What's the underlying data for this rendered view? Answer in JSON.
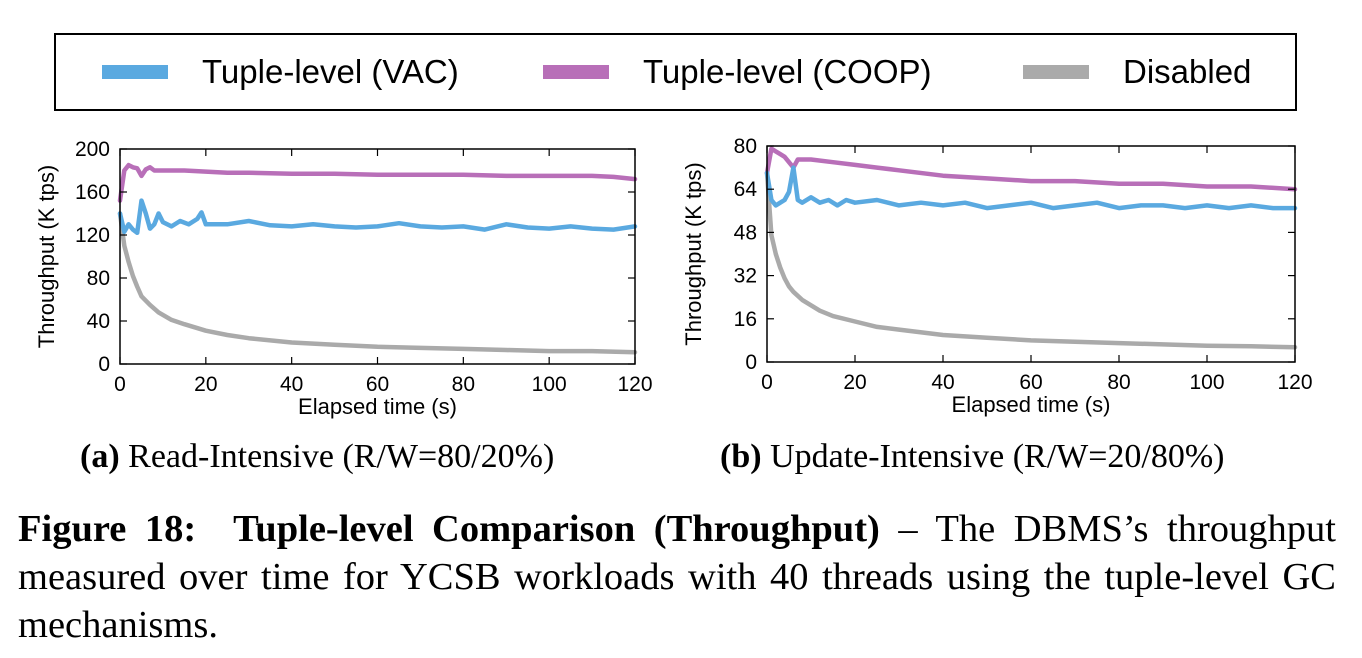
{
  "legend": [
    {
      "label": "Tuple-level (VAC)",
      "color": "#5aa9e0"
    },
    {
      "label": "Tuple-level (COOP)",
      "color": "#b86fb8"
    },
    {
      "label": "Disabled",
      "color": "#aaaaaa"
    }
  ],
  "captions": {
    "a_label": "(a)",
    "a_text": "Read-Intensive (R/W=80/20%)",
    "b_label": "(b)",
    "b_text": "Update-Intensive (R/W=20/80%)"
  },
  "figure_caption": {
    "label": "Figure 18:",
    "title": "Tuple-level Comparison (Throughput)",
    "body": "– The DBMS’s throughput measured over time for YCSB workloads with 40 threads using the tuple-level GC mechanisms."
  },
  "chart_data": [
    {
      "type": "line",
      "title": "",
      "xlabel": "Elapsed time (s)",
      "ylabel": "Throughput (K tps)",
      "xlim": [
        0,
        120
      ],
      "ylim": [
        0,
        200
      ],
      "xticks": [
        0,
        20,
        40,
        60,
        80,
        100,
        120
      ],
      "yticks": [
        0,
        40,
        80,
        120,
        160,
        200
      ],
      "grid": false,
      "series": [
        {
          "name": "Tuple-level (VAC)",
          "color": "#5aa9e0",
          "x": [
            0,
            1,
            2,
            3,
            4,
            5,
            6,
            7,
            8,
            9,
            10,
            12,
            14,
            16,
            18,
            19,
            20,
            25,
            30,
            35,
            40,
            45,
            50,
            55,
            60,
            65,
            70,
            75,
            80,
            85,
            90,
            95,
            100,
            105,
            110,
            115,
            120
          ],
          "y": [
            140,
            123,
            130,
            125,
            122,
            152,
            140,
            126,
            130,
            140,
            132,
            128,
            133,
            130,
            135,
            141,
            130,
            130,
            133,
            129,
            128,
            130,
            128,
            127,
            128,
            131,
            128,
            127,
            128,
            125,
            130,
            127,
            126,
            128,
            126,
            125,
            128
          ]
        },
        {
          "name": "Tuple-level (COOP)",
          "color": "#b86fb8",
          "x": [
            0,
            1,
            2,
            3,
            4,
            5,
            6,
            7,
            8,
            10,
            15,
            20,
            25,
            30,
            40,
            50,
            60,
            70,
            80,
            90,
            100,
            110,
            115,
            120
          ],
          "y": [
            152,
            180,
            185,
            183,
            182,
            175,
            181,
            183,
            180,
            180,
            180,
            179,
            178,
            178,
            177,
            177,
            176,
            176,
            176,
            175,
            175,
            175,
            174,
            172
          ]
        },
        {
          "name": "Disabled",
          "color": "#aaaaaa",
          "x": [
            0,
            1,
            2,
            3,
            4,
            5,
            7,
            9,
            12,
            15,
            20,
            25,
            30,
            40,
            50,
            60,
            70,
            80,
            90,
            100,
            110,
            120
          ],
          "y": [
            140,
            110,
            95,
            82,
            72,
            63,
            55,
            48,
            41,
            37,
            31,
            27,
            24,
            20,
            18,
            16,
            15,
            14,
            13,
            12,
            12,
            11
          ]
        }
      ]
    },
    {
      "type": "line",
      "title": "",
      "xlabel": "Elapsed time (s)",
      "ylabel": "Throughput (K tps)",
      "xlim": [
        0,
        120
      ],
      "ylim": [
        0,
        80
      ],
      "xticks": [
        0,
        20,
        40,
        60,
        80,
        100,
        120
      ],
      "yticks": [
        0,
        16,
        32,
        48,
        64,
        80
      ],
      "grid": false,
      "series": [
        {
          "name": "Tuple-level (VAC)",
          "color": "#5aa9e0",
          "x": [
            0,
            1,
            2,
            3,
            4,
            5,
            6,
            7,
            8,
            10,
            12,
            14,
            16,
            18,
            20,
            25,
            30,
            35,
            40,
            45,
            50,
            55,
            60,
            65,
            70,
            75,
            80,
            85,
            90,
            95,
            100,
            105,
            110,
            115,
            120
          ],
          "y": [
            70,
            60,
            58,
            59,
            60,
            63,
            72,
            60,
            59,
            61,
            59,
            60,
            58,
            60,
            59,
            60,
            58,
            59,
            58,
            59,
            57,
            58,
            59,
            57,
            58,
            59,
            57,
            58,
            58,
            57,
            58,
            57,
            58,
            57,
            57
          ]
        },
        {
          "name": "Tuple-level (COOP)",
          "color": "#b86fb8",
          "x": [
            0,
            1,
            2,
            3,
            4,
            5,
            6,
            7,
            8,
            10,
            15,
            20,
            25,
            30,
            40,
            50,
            60,
            70,
            80,
            90,
            100,
            110,
            120
          ],
          "y": [
            70,
            79,
            78,
            77,
            76,
            74,
            72,
            75,
            75,
            75,
            74,
            73,
            72,
            71,
            69,
            68,
            67,
            67,
            66,
            66,
            65,
            65,
            64
          ]
        },
        {
          "name": "Disabled",
          "color": "#aaaaaa",
          "x": [
            0,
            1,
            2,
            3,
            4,
            5,
            6,
            8,
            10,
            12,
            15,
            20,
            25,
            30,
            40,
            50,
            60,
            70,
            80,
            90,
            100,
            110,
            120
          ],
          "y": [
            70,
            47,
            40,
            35,
            31,
            28,
            26,
            23,
            21,
            19,
            17,
            15,
            13,
            12,
            10,
            9,
            8,
            7.5,
            7,
            6.5,
            6,
            5.8,
            5.5
          ]
        }
      ]
    }
  ]
}
